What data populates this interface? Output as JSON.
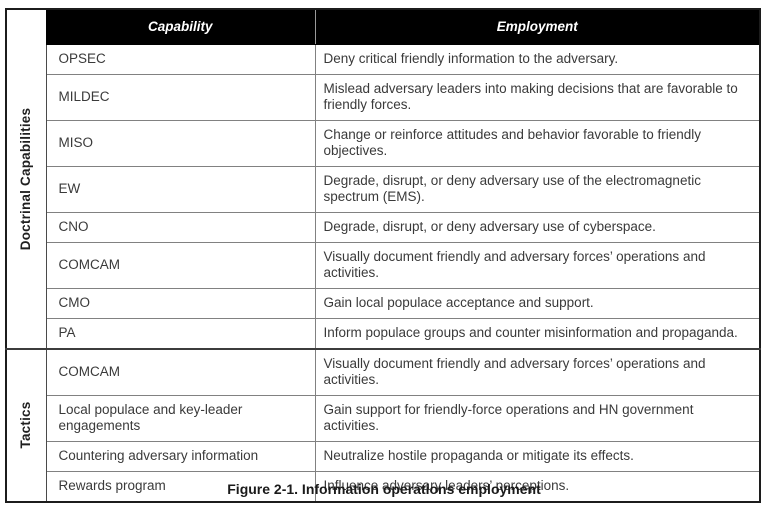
{
  "header": {
    "capability": "Capability",
    "employment": "Employment"
  },
  "sections": [
    {
      "label": "Doctrinal Capabilities",
      "rows": [
        {
          "capability": "OPSEC",
          "employment": "Deny critical friendly information to the adversary."
        },
        {
          "capability": "MILDEC",
          "employment": "Mislead adversary leaders into making decisions that are favorable to friendly forces."
        },
        {
          "capability": "MISO",
          "employment": "Change or reinforce attitudes and behavior favorable to friendly objectives."
        },
        {
          "capability": "EW",
          "employment": "Degrade, disrupt, or deny adversary use of the electromagnetic spectrum (EMS)."
        },
        {
          "capability": "CNO",
          "employment": "Degrade, disrupt, or deny adversary use of cyberspace."
        },
        {
          "capability": "COMCAM",
          "employment": "Visually document friendly and adversary forces’ operations and activities."
        },
        {
          "capability": "CMO",
          "employment": "Gain local populace acceptance and support."
        },
        {
          "capability": "PA",
          "employment": "Inform populace groups and counter misinformation and propaganda."
        }
      ]
    },
    {
      "label": "Tactics",
      "rows": [
        {
          "capability": "COMCAM",
          "employment": "Visually document friendly and adversary forces’ operations and activities."
        },
        {
          "capability": "Local populace and key-leader engagements",
          "employment": "Gain support for friendly-force operations and HN government activities."
        },
        {
          "capability": "Countering adversary information",
          "employment": "Neutralize hostile propaganda or mitigate its effects."
        },
        {
          "capability": "Rewards program",
          "employment": "Influence adversary leaders’ perceptions."
        }
      ]
    }
  ],
  "caption": "Figure 2-1. Information operations employment",
  "colors": {
    "header_bg": "#000000",
    "header_text": "#ffffff",
    "body_text": "#3a3a3a",
    "grid_line": "#818181",
    "outer_border": "#1c1c1c"
  }
}
